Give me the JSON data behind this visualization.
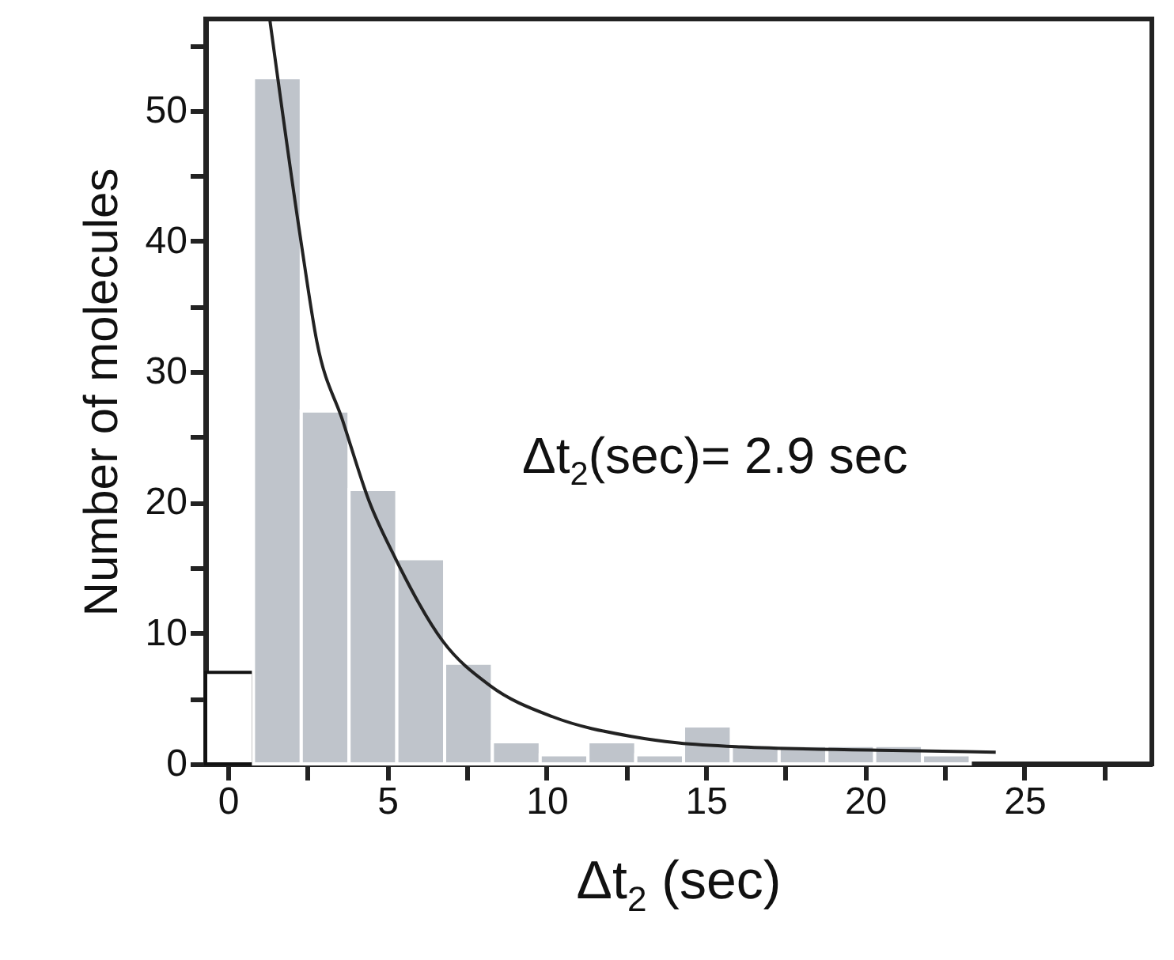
{
  "chart_data": {
    "type": "histogram",
    "xlabel": "Δt$_{2}$ (sec)",
    "ylabel": "Number of molecules",
    "annotations": [
      "Δt$_{2}$(sec)= 2.9 sec"
    ],
    "bins": [
      -0.7,
      0.8,
      2.3,
      3.8,
      5.3,
      6.8,
      8.3,
      9.8,
      11.3,
      12.8,
      14.3,
      15.8,
      17.3,
      18.8,
      20.3,
      21.8,
      23.3
    ],
    "values": [
      7,
      52.5,
      27,
      21,
      15.7,
      7.7,
      1.7,
      0.7,
      1.7,
      0.7,
      2.9,
      1.4,
      1.4,
      1.4,
      1.4,
      0.7
    ],
    "colors": [
      "#ffffff",
      "#bfc4cb",
      "#bfc4cb",
      "#bfc4cb",
      "#bfc4cb",
      "#bfc4cb",
      "#bfc4cb",
      "#bfc4cb",
      "#bfc4cb",
      "#bfc4cb",
      "#bfc4cb",
      "#bfc4cb",
      "#bfc4cb",
      "#bfc4cb",
      "#bfc4cb",
      "#bfc4cb"
    ],
    "series": [
      {
        "type": "line",
        "color": "#222222",
        "x": [
          1.31,
          2.29,
          2.79,
          3.61,
          4.43,
          5.26,
          6.74,
          8.22,
          10.2,
          12.66,
          14.14,
          16.1,
          21.7,
          24.1
        ],
        "values": [
          57,
          40,
          32.3,
          26.2,
          20.1,
          15.7,
          9.4,
          6.0,
          3.6,
          2.1,
          1.6,
          1.3,
          1.0,
          0.9
        ]
      }
    ],
    "xlim": [
      -0.7,
      29
    ],
    "ylim": [
      0,
      57
    ],
    "xticks": [
      0,
      {
        "value": 2.5,
        "label": null
      },
      5,
      {
        "value": 7.5,
        "label": null
      },
      10,
      {
        "value": 12.5,
        "label": null
      },
      15,
      {
        "value": 17.5,
        "label": null
      },
      20,
      {
        "value": 22.5,
        "label": null
      },
      25,
      {
        "value": 27.5,
        "label": null
      }
    ],
    "yticks": [
      0,
      {
        "value": 5,
        "label": null
      },
      10,
      {
        "value": 15,
        "label": null
      },
      20,
      {
        "value": 25,
        "label": null
      },
      30,
      {
        "value": 35,
        "label": null
      },
      40,
      {
        "value": 45,
        "label": null
      },
      50,
      {
        "value": 55,
        "label": null
      }
    ],
    "grid": false,
    "line_style": "solid",
    "marker": "none"
  }
}
